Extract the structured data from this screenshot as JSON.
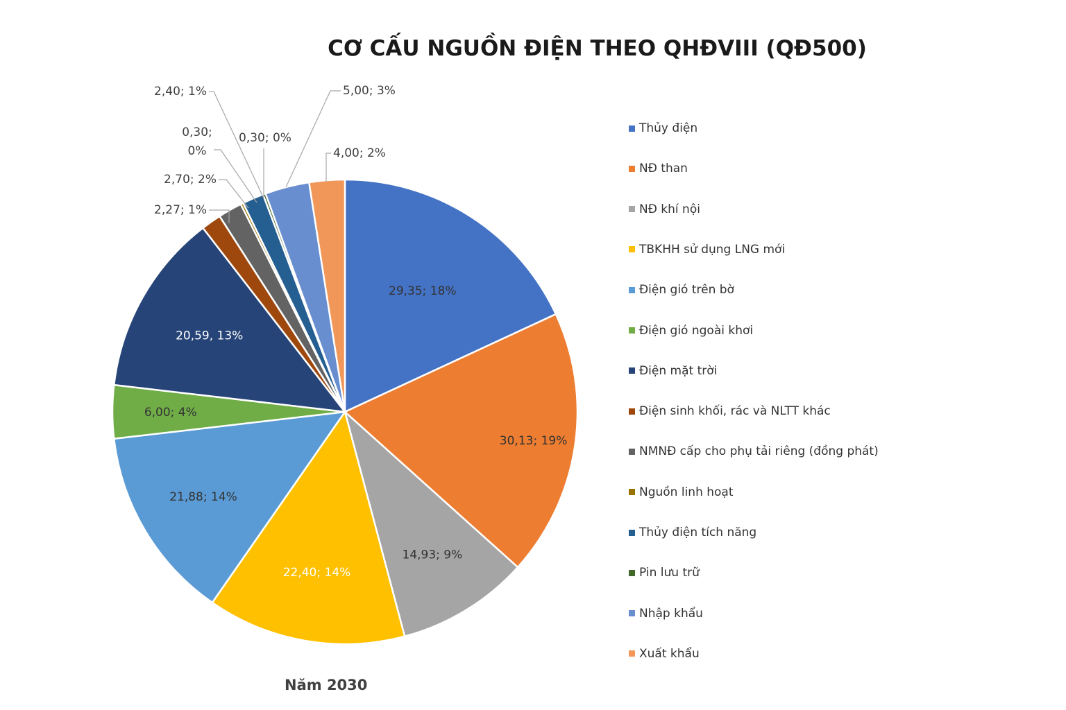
{
  "chart_data": {
    "type": "pie",
    "title": "CƠ CẤU NGUỒN ĐIỆN THEO QHĐVIII (QĐ500)",
    "subtitle": "Năm 2030",
    "legend_position": "right",
    "slices": [
      {
        "name": "Thủy điện",
        "value": 29.35,
        "label": "29,35; 18%",
        "color": "#4472C4"
      },
      {
        "name": "NĐ than",
        "value": 30.13,
        "label": "30,13; 19%",
        "color": "#ED7D31"
      },
      {
        "name": "NĐ khí nội",
        "value": 14.93,
        "label": "14,93; 9%",
        "color": "#A5A5A5"
      },
      {
        "name": "TBKHH sử dụng LNG mới",
        "value": 22.4,
        "label": "22,40; 14%",
        "color": "#FFC000"
      },
      {
        "name": "Điện gió trên bờ",
        "value": 21.88,
        "label": "21,88; 14%",
        "color": "#5B9BD5"
      },
      {
        "name": "Điện gió ngoài khơi",
        "value": 6.0,
        "label": "6,00; 4%",
        "color": "#70AD47"
      },
      {
        "name": "Điện mặt trời",
        "value": 20.59,
        "label": "20,59, 13%",
        "color": "#264478"
      },
      {
        "name": "Điện sinh khối, rác và NLTT khác",
        "value": 2.27,
        "label": "2,27; 1%",
        "color": "#9E480E"
      },
      {
        "name": "NMNĐ cấp cho phụ tải riêng (đồng phát)",
        "value": 2.7,
        "label": "2,70; 2%",
        "color": "#636363"
      },
      {
        "name": "Nguồn linh hoạt",
        "value": 0.3,
        "label": "0,30;\n0%",
        "color": "#997300"
      },
      {
        "name": "Thủy điện tích năng",
        "value": 2.4,
        "label": "2,40; 1%",
        "color": "#255E91"
      },
      {
        "name": "Pin lưu trữ",
        "value": 0.3,
        "label": "0,30; 0%",
        "color": "#43682B"
      },
      {
        "name": "Nhập khẩu",
        "value": 5.0,
        "label": "5,00; 3%",
        "color": "#698ED0"
      },
      {
        "name": "Xuất khẩu",
        "value": 4.0,
        "label": "4,00; 2%",
        "color": "#F1975A"
      }
    ]
  }
}
